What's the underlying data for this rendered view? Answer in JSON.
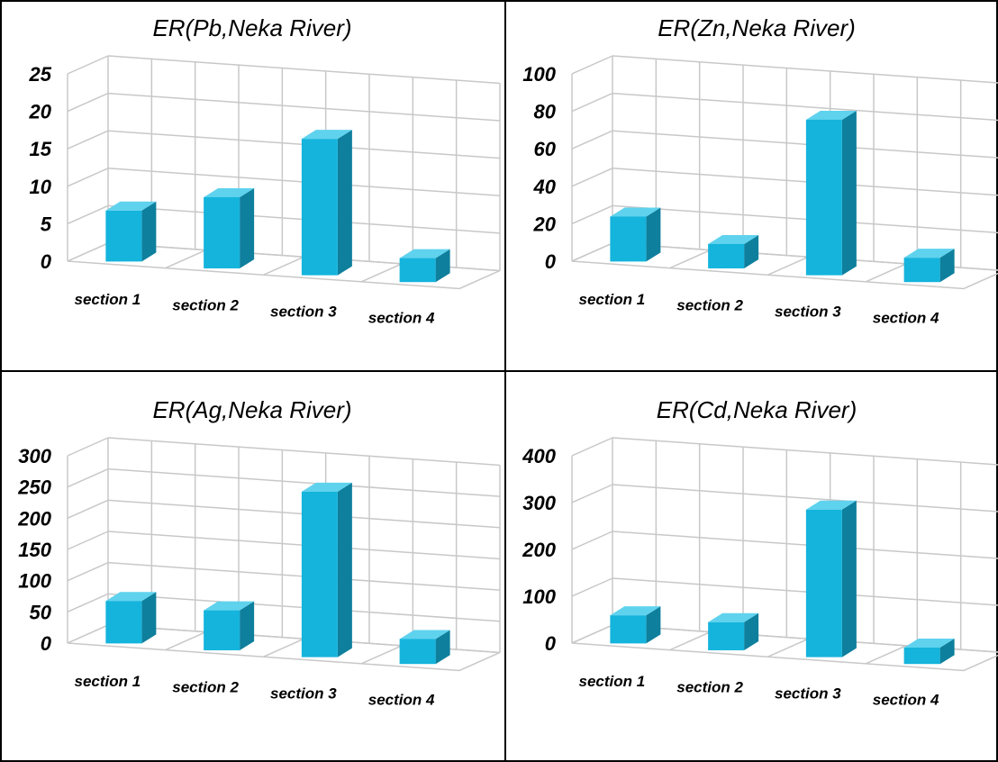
{
  "chart_data": [
    {
      "type": "bar",
      "title": "ER(Pb,Neka River)",
      "categories": [
        "section 1",
        "section 2",
        "section 3",
        "section 4"
      ],
      "values": [
        6.8,
        9.5,
        18.2,
        3.2
      ],
      "ylim": [
        0,
        25
      ],
      "yticks": [
        "0",
        "5",
        "10",
        "15",
        "20",
        "25"
      ],
      "xlabel": "",
      "ylabel": "",
      "grid": true,
      "bar_color": "#14b4dc"
    },
    {
      "type": "bar",
      "title": "ER(Zn,Neka River)",
      "categories": [
        "section 1",
        "section 2",
        "section 3",
        "section 4"
      ],
      "values": [
        24,
        13,
        83,
        13
      ],
      "ylim": [
        0,
        100
      ],
      "yticks": [
        "0",
        "20",
        "40",
        "60",
        "80",
        "100"
      ],
      "xlabel": "",
      "ylabel": "",
      "grid": true,
      "bar_color": "#14b4dc"
    },
    {
      "type": "bar",
      "title": "ER(Ag,Neka River)",
      "categories": [
        "section 1",
        "section 2",
        "section 3",
        "section 4"
      ],
      "values": [
        68,
        64,
        265,
        40
      ],
      "ylim": [
        0,
        300
      ],
      "yticks": [
        "0",
        "50",
        "100",
        "150",
        "200",
        "250",
        "300"
      ],
      "xlabel": "",
      "ylabel": "",
      "grid": true,
      "bar_color": "#14b4dc"
    },
    {
      "type": "bar",
      "title": "ER(Cd,Neka River)",
      "categories": [
        "section 1",
        "section 2",
        "section 3",
        "section 4"
      ],
      "values": [
        60,
        60,
        315,
        35
      ],
      "ylim": [
        0,
        400
      ],
      "yticks": [
        "0",
        "100",
        "200",
        "300",
        "400"
      ],
      "xlabel": "",
      "ylabel": "",
      "grid": true,
      "bar_color": "#14b4dc"
    }
  ],
  "colors": {
    "bar_front": "#14b4dc",
    "bar_side": "#0e7f9c",
    "bar_top": "#5fd2ee",
    "grid": "#c8c8c8",
    "frame": "#000000",
    "text": "#000000"
  }
}
